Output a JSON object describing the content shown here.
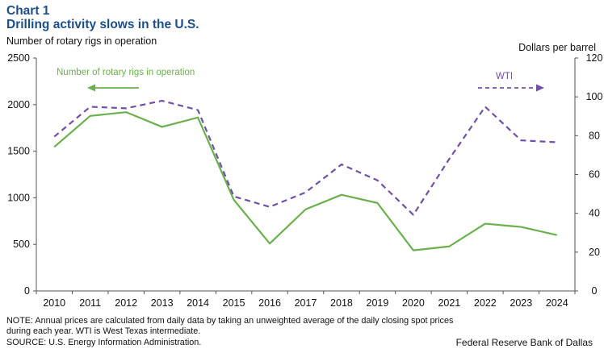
{
  "header": {
    "chart_label": "Chart 1",
    "title": "Drilling activity slows in the U.S."
  },
  "chart_data": {
    "type": "line",
    "title": "Drilling activity slows in the U.S.",
    "x": [
      "2010",
      "2011",
      "2012",
      "2013",
      "2014",
      "2015",
      "2016",
      "2017",
      "2018",
      "2019",
      "2020",
      "2021",
      "2022",
      "2023",
      "2024"
    ],
    "ylabel_left": "Number of rotary rigs in operation",
    "ylabel_right": "Dollars per barrel",
    "ylim_left": [
      0,
      2500
    ],
    "ylim_right": [
      0,
      120
    ],
    "yticks_left": [
      "0",
      "500",
      "1000",
      "1500",
      "2000",
      "2500"
    ],
    "yticks_right": [
      "0",
      "20",
      "40",
      "60",
      "80",
      "100",
      "120"
    ],
    "grid": false,
    "colors": {
      "rigs": "#6ab04c",
      "wti": "#7050a8",
      "title": "#1b4f8a"
    },
    "series": [
      {
        "name": "Number of rotary rigs in operation",
        "axis": "left",
        "style": "solid",
        "values": [
          1546,
          1879,
          1919,
          1761,
          1862,
          978,
          509,
          876,
          1032,
          944,
          436,
          478,
          722,
          687,
          600
        ]
      },
      {
        "name": "WTI",
        "axis": "right",
        "style": "dashed",
        "values": [
          79.5,
          94.9,
          94.1,
          98.0,
          93.2,
          48.7,
          43.3,
          50.8,
          65.2,
          57.0,
          39.2,
          68.0,
          94.9,
          77.6,
          76.6
        ]
      }
    ]
  },
  "footer": {
    "note": "NOTE: Annual prices are calculated from daily data by taking an unweighted average of the daily closing spot prices during each year. WTI is West Texas intermediate.",
    "source": "SOURCE: U.S. Energy Information Administration.",
    "credit": "Federal Reserve Bank of Dallas"
  }
}
